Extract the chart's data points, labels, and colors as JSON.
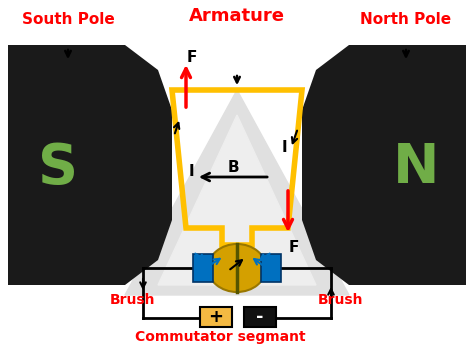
{
  "bg_color": "#ffffff",
  "title": "",
  "labels": {
    "south_pole": "South Pole",
    "north_pole": "North Pole",
    "armature": "Armature",
    "brush_left": "Brush",
    "brush_right": "Brush",
    "commutator": "Commutator segmant",
    "S": "S",
    "N": "N",
    "F_top": "F",
    "F_bottom": "F",
    "I_left": "I",
    "I_right": "I",
    "B": "B"
  },
  "colors": {
    "red": "#ff0000",
    "black": "#000000",
    "yellow": "#ffc000",
    "blue": "#0070c0",
    "green": "#70ad47",
    "magnet_black": "#1a1a1a",
    "commutator_gold": "#d4a000",
    "battery_pos": "#f4b942"
  }
}
